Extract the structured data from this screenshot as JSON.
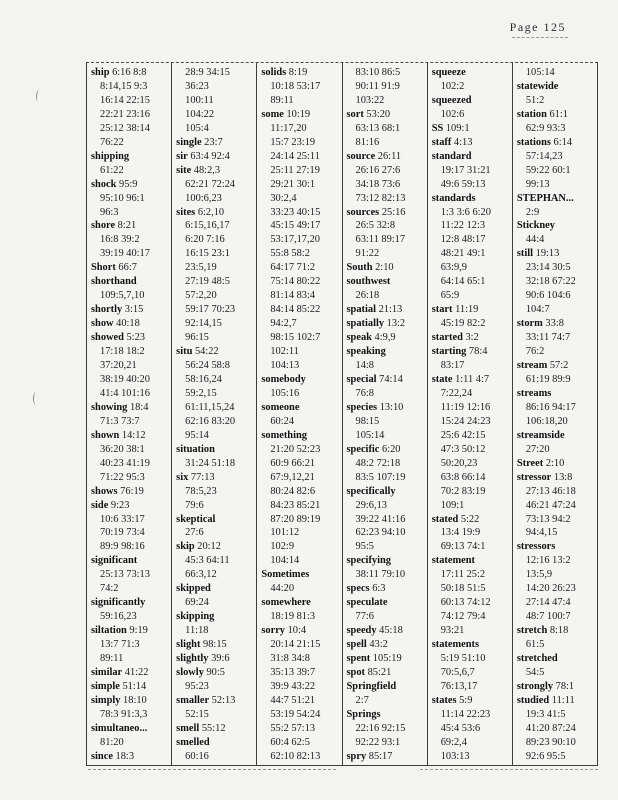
{
  "page": {
    "header": "Page 125"
  },
  "index": {
    "columns": [
      [
        [
          "ship",
          "6:16 8:8"
        ],
        [
          "",
          "8:14,15 9:3"
        ],
        [
          "",
          "16:14 22:15"
        ],
        [
          "",
          "22:21 23:16"
        ],
        [
          "",
          "25:12 38:14"
        ],
        [
          "",
          "76:22"
        ],
        [
          "shipping",
          ""
        ],
        [
          "",
          "61:22"
        ],
        [
          "shock",
          "95:9"
        ],
        [
          "",
          "95:10 96:1"
        ],
        [
          "",
          "96:3"
        ],
        [
          "shore",
          "8:21"
        ],
        [
          "",
          "16:8 39:2"
        ],
        [
          "",
          "39:19 40:17"
        ],
        [
          "Short",
          "66:7"
        ],
        [
          "shorthand",
          ""
        ],
        [
          "",
          "109:5,7,10"
        ],
        [
          "shortly",
          "3:15"
        ],
        [
          "show",
          "40:18"
        ],
        [
          "showed",
          "5:23"
        ],
        [
          "",
          "17:18 18:2"
        ],
        [
          "",
          "37:20,21"
        ],
        [
          "",
          "38:19 40:20"
        ],
        [
          "",
          "41:4 101:16"
        ],
        [
          "showing",
          "18:4"
        ],
        [
          "",
          "71:3 73:7"
        ],
        [
          "shown",
          "14:12"
        ],
        [
          "",
          "36:20 38:1"
        ],
        [
          "",
          "40:23 41:19"
        ],
        [
          "",
          "71:22 95:3"
        ],
        [
          "shows",
          "76:19"
        ],
        [
          "side",
          "9:23"
        ],
        [
          "",
          "10:6 33:17"
        ],
        [
          "",
          "70:19 73:4"
        ],
        [
          "",
          "89:9 98:16"
        ],
        [
          "significant",
          ""
        ],
        [
          "",
          "25:13 73:13"
        ],
        [
          "",
          "74:2"
        ],
        [
          "significantly",
          ""
        ],
        [
          "",
          "59:16,23"
        ],
        [
          "siltation",
          "9:19"
        ],
        [
          "",
          "13:7 71:3"
        ],
        [
          "",
          "89:11"
        ],
        [
          "similar",
          "41:22"
        ],
        [
          "simple",
          "51:14"
        ],
        [
          "simply",
          "18:10"
        ],
        [
          "",
          "78:3 91:3,3"
        ],
        [
          "simultaneo...",
          ""
        ],
        [
          "",
          "81:20"
        ],
        [
          "since",
          "18:3"
        ]
      ],
      [
        [
          "",
          "28:9 34:15"
        ],
        [
          "",
          "36:23"
        ],
        [
          "",
          "100:11"
        ],
        [
          "",
          "104:22"
        ],
        [
          "",
          "105:4"
        ],
        [
          "single",
          "23:7"
        ],
        [
          "sir",
          "63:4 92:4"
        ],
        [
          "site",
          "48:2,3"
        ],
        [
          "",
          "62:21 72:24"
        ],
        [
          "",
          "100:6,23"
        ],
        [
          "sites",
          "6:2,10"
        ],
        [
          "",
          "6:15,16,17"
        ],
        [
          "",
          "6:20 7:16"
        ],
        [
          "",
          "16:15 23:1"
        ],
        [
          "",
          "23:5,19"
        ],
        [
          "",
          "27:19 48:5"
        ],
        [
          "",
          "57:2,20"
        ],
        [
          "",
          "59:17 70:23"
        ],
        [
          "",
          "92:14,15"
        ],
        [
          "",
          "96:15"
        ],
        [
          "situ",
          "54:22"
        ],
        [
          "",
          "56:24 58:8"
        ],
        [
          "",
          "58:16,24"
        ],
        [
          "",
          "59:2,15"
        ],
        [
          "",
          "61:11,15,24"
        ],
        [
          "",
          "62:16 83:20"
        ],
        [
          "",
          "95:14"
        ],
        [
          "situation",
          ""
        ],
        [
          "",
          "31:24 51:18"
        ],
        [
          "six",
          "77:13"
        ],
        [
          "",
          "78:5,23"
        ],
        [
          "",
          "79:6"
        ],
        [
          "skeptical",
          ""
        ],
        [
          "",
          "27:6"
        ],
        [
          "skip",
          "20:12"
        ],
        [
          "",
          "45:3 64:11"
        ],
        [
          "",
          "66:3,12"
        ],
        [
          "skipped",
          ""
        ],
        [
          "",
          "69:24"
        ],
        [
          "skipping",
          ""
        ],
        [
          "",
          "11:18"
        ],
        [
          "slight",
          "98:15"
        ],
        [
          "slightly",
          "39:6"
        ],
        [
          "slowly",
          "90:5"
        ],
        [
          "",
          "95:23"
        ],
        [
          "smaller",
          "52:13"
        ],
        [
          "",
          "52:15"
        ],
        [
          "smell",
          "55:12"
        ],
        [
          "smelled",
          ""
        ],
        [
          "",
          "60:16"
        ]
      ],
      [
        [
          "solids",
          "8:19"
        ],
        [
          "",
          "10:18 53:17"
        ],
        [
          "",
          "89:11"
        ],
        [
          "some",
          "10:19"
        ],
        [
          "",
          "11:17,20"
        ],
        [
          "",
          "15:7 23:19"
        ],
        [
          "",
          "24:14 25:11"
        ],
        [
          "",
          "25:11 27:19"
        ],
        [
          "",
          "29:21 30:1"
        ],
        [
          "",
          "30:2,4"
        ],
        [
          "",
          "33:23 40:15"
        ],
        [
          "",
          "45:15 49:17"
        ],
        [
          "",
          "53:17,17,20"
        ],
        [
          "",
          "55:8 58:2"
        ],
        [
          "",
          "64:17 71:2"
        ],
        [
          "",
          "75:14 80:22"
        ],
        [
          "",
          "81:14 83:4"
        ],
        [
          "",
          "84:14 85:22"
        ],
        [
          "",
          "94:2,7"
        ],
        [
          "",
          "98:15 102:7"
        ],
        [
          "",
          "102:11"
        ],
        [
          "",
          "104:13"
        ],
        [
          "somebody",
          ""
        ],
        [
          "",
          "105:16"
        ],
        [
          "someone",
          ""
        ],
        [
          "",
          "60:24"
        ],
        [
          "something",
          ""
        ],
        [
          "",
          "21:20 52:23"
        ],
        [
          "",
          "60:9 66:21"
        ],
        [
          "",
          "67:9,12,21"
        ],
        [
          "",
          "80:24 82:6"
        ],
        [
          "",
          "84:23 85:21"
        ],
        [
          "",
          "87:20 89:19"
        ],
        [
          "",
          "101:12"
        ],
        [
          "",
          "102:9"
        ],
        [
          "",
          "104:14"
        ],
        [
          "Sometimes",
          ""
        ],
        [
          "",
          "44:20"
        ],
        [
          "somewhere",
          ""
        ],
        [
          "",
          "18:19 81:3"
        ],
        [
          "sorry",
          "10:4"
        ],
        [
          "",
          "20:14 21:15"
        ],
        [
          "",
          "31:8 34:8"
        ],
        [
          "",
          "35:13 39:7"
        ],
        [
          "",
          "39:9 43:22"
        ],
        [
          "",
          "44:7 51:21"
        ],
        [
          "",
          "53:19 54:24"
        ],
        [
          "",
          "55:2 57:13"
        ],
        [
          "",
          "60:4 62:5"
        ],
        [
          "",
          "62:10 82:13"
        ]
      ],
      [
        [
          "",
          "83:10 86:5"
        ],
        [
          "",
          "90:11 91:9"
        ],
        [
          "",
          "103:22"
        ],
        [
          "sort",
          "53:20"
        ],
        [
          "",
          "63:13 68:1"
        ],
        [
          "",
          "81:16"
        ],
        [
          "source",
          "26:11"
        ],
        [
          "",
          "26:16 27:6"
        ],
        [
          "",
          "34:18 73:6"
        ],
        [
          "",
          "73:12 82:13"
        ],
        [
          "sources",
          "25:16"
        ],
        [
          "",
          "26:5 32:8"
        ],
        [
          "",
          "63:11 89:17"
        ],
        [
          "",
          "91:22"
        ],
        [
          "South",
          "2:10"
        ],
        [
          "southwest",
          ""
        ],
        [
          "",
          "26:18"
        ],
        [
          "spatial",
          "21:13"
        ],
        [
          "spatially",
          "13:2"
        ],
        [
          "speak",
          "4:9,9"
        ],
        [
          "speaking",
          ""
        ],
        [
          "",
          "14:8"
        ],
        [
          "special",
          "74:14"
        ],
        [
          "",
          "76:8"
        ],
        [
          "species",
          "13:10"
        ],
        [
          "",
          "98:15"
        ],
        [
          "",
          "105:14"
        ],
        [
          "specific",
          "6:20"
        ],
        [
          "",
          "48:2 72:18"
        ],
        [
          "",
          "83:5 107:19"
        ],
        [
          "specifically",
          ""
        ],
        [
          "",
          "29:6,13"
        ],
        [
          "",
          "39:22 41:16"
        ],
        [
          "",
          "62:23 94:10"
        ],
        [
          "",
          "95:5"
        ],
        [
          "specifying",
          ""
        ],
        [
          "",
          "38:11 79:10"
        ],
        [
          "specs",
          "6:3"
        ],
        [
          "speculate",
          ""
        ],
        [
          "",
          "77:6"
        ],
        [
          "speedy",
          "45:18"
        ],
        [
          "spell",
          "43:2"
        ],
        [
          "spent",
          "105:19"
        ],
        [
          "spot",
          "85:21"
        ],
        [
          "Springfield",
          ""
        ],
        [
          "",
          "2:7"
        ],
        [
          "Springs",
          ""
        ],
        [
          "",
          "22:16 92:15"
        ],
        [
          "",
          "92:22 93:1"
        ],
        [
          "spry",
          "85:17"
        ]
      ],
      [
        [
          "squeeze",
          ""
        ],
        [
          "",
          "102:2"
        ],
        [
          "squeezed",
          ""
        ],
        [
          "",
          "102:6"
        ],
        [
          "SS",
          "109:1"
        ],
        [
          "staff",
          "4:13"
        ],
        [
          "standard",
          ""
        ],
        [
          "",
          "19:17 31:21"
        ],
        [
          "",
          "49:6 59:13"
        ],
        [
          "standards",
          ""
        ],
        [
          "",
          "1:3 3:6 6:20"
        ],
        [
          "",
          "11:22 12:3"
        ],
        [
          "",
          "12:8 48:17"
        ],
        [
          "",
          "48:21 49:1"
        ],
        [
          "",
          "63:9,9"
        ],
        [
          "",
          "64:14 65:1"
        ],
        [
          "",
          "65:9"
        ],
        [
          "start",
          "11:19"
        ],
        [
          "",
          "45:19 82:2"
        ],
        [
          "started",
          "3:2"
        ],
        [
          "starting",
          "78:4"
        ],
        [
          "",
          "83:17"
        ],
        [
          "state",
          "1:11 4:7"
        ],
        [
          "",
          "7:22,24"
        ],
        [
          "",
          "11:19 12:16"
        ],
        [
          "",
          "15:24 24:23"
        ],
        [
          "",
          "25:6 42:15"
        ],
        [
          "",
          "47:3 50:12"
        ],
        [
          "",
          "50:20,23"
        ],
        [
          "",
          "63:8 66:14"
        ],
        [
          "",
          "70:2 83:19"
        ],
        [
          "",
          "109:1"
        ],
        [
          "stated",
          "5:22"
        ],
        [
          "",
          "13:4 19:9"
        ],
        [
          "",
          "69:13 74:1"
        ],
        [
          "statement",
          ""
        ],
        [
          "",
          "17:11 25:2"
        ],
        [
          "",
          "50:18 51:5"
        ],
        [
          "",
          "60:13 74:12"
        ],
        [
          "",
          "74:12 79:4"
        ],
        [
          "",
          "93:21"
        ],
        [
          "statements",
          ""
        ],
        [
          "",
          "5:19 51:10"
        ],
        [
          "",
          "70:5,6,7"
        ],
        [
          "",
          "76:13,17"
        ],
        [
          "states",
          "5:9"
        ],
        [
          "",
          "11:14 22:23"
        ],
        [
          "",
          "45:4 53:6"
        ],
        [
          "",
          "69:2,4"
        ],
        [
          "",
          "103:13"
        ]
      ],
      [
        [
          "",
          "105:14"
        ],
        [
          "statewide",
          ""
        ],
        [
          "",
          "51:2"
        ],
        [
          "station",
          "61:1"
        ],
        [
          "",
          "62:9 93:3"
        ],
        [
          "stations",
          "6:14"
        ],
        [
          "",
          "57:14,23"
        ],
        [
          "",
          "59:22 60:1"
        ],
        [
          "",
          "99:13"
        ],
        [
          "STEPHAN...",
          ""
        ],
        [
          "",
          "2:9"
        ],
        [
          "Stickney",
          ""
        ],
        [
          "",
          "44:4"
        ],
        [
          "still",
          "19:13"
        ],
        [
          "",
          "23:14 30:5"
        ],
        [
          "",
          "32:18 67:22"
        ],
        [
          "",
          "90:6 104:6"
        ],
        [
          "",
          "104:7"
        ],
        [
          "storm",
          "33:8"
        ],
        [
          "",
          "33:11 74:7"
        ],
        [
          "",
          "76:2"
        ],
        [
          "stream",
          "57:2"
        ],
        [
          "",
          "61:19 89:9"
        ],
        [
          "streams",
          ""
        ],
        [
          "",
          "86:16 94:17"
        ],
        [
          "",
          "106:18,20"
        ],
        [
          "streamside",
          ""
        ],
        [
          "",
          "27:20"
        ],
        [
          "Street",
          "2:10"
        ],
        [
          "stressor",
          "13:8"
        ],
        [
          "",
          "27:13 46:18"
        ],
        [
          "",
          "46:21 47:24"
        ],
        [
          "",
          "73:13 94:2"
        ],
        [
          "",
          "94:4,15"
        ],
        [
          "stressors",
          ""
        ],
        [
          "",
          "12:16 13:2"
        ],
        [
          "",
          "13:5,9"
        ],
        [
          "",
          "14:20 26:23"
        ],
        [
          "",
          "27:14 47:4"
        ],
        [
          "",
          "48:7 100:7"
        ],
        [
          "stretch",
          "8:18"
        ],
        [
          "",
          "61:5"
        ],
        [
          "stretched",
          ""
        ],
        [
          "",
          "54:5"
        ],
        [
          "strongly",
          "78:1"
        ],
        [
          "studied",
          "11:11"
        ],
        [
          "",
          "19:3 41:5"
        ],
        [
          "",
          "41:20 87:24"
        ],
        [
          "",
          "89:23 90:10"
        ],
        [
          "",
          "92:6 95:5"
        ]
      ]
    ]
  }
}
